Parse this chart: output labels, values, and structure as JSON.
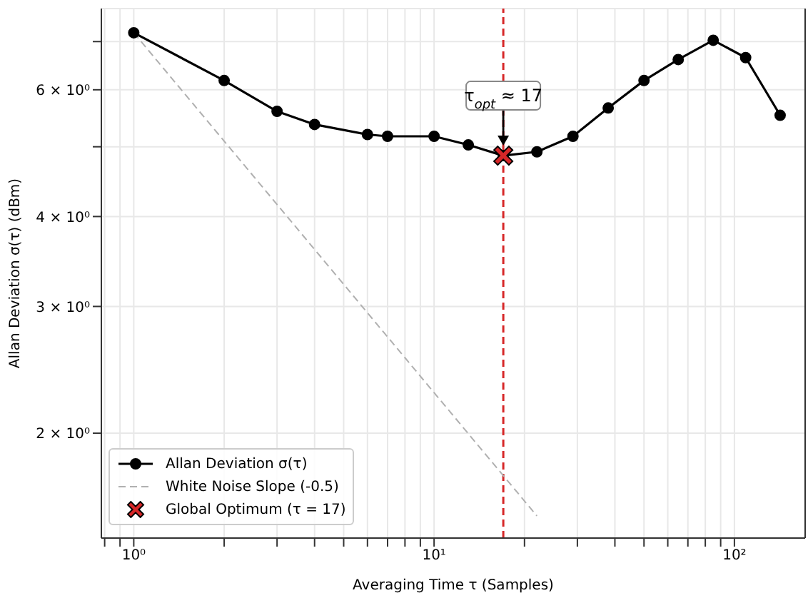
{
  "chart_data": {
    "type": "line",
    "xlabel": "Averaging Time τ (Samples)",
    "ylabel": "Allan Deviation σ(τ) (dBm)",
    "log": "xy",
    "grid": true,
    "legend": "bottom left",
    "xlim": [
      0.78,
      172
    ],
    "ylim": [
      1.43,
      7.78
    ],
    "xticks": [
      {
        "value": 0.8,
        "label": null
      },
      {
        "value": 0.9,
        "label": null
      },
      {
        "value": 1,
        "label": "10⁰"
      },
      {
        "value": 2,
        "label": null
      },
      {
        "value": 3,
        "label": null
      },
      {
        "value": 4,
        "label": null
      },
      {
        "value": 5,
        "label": null
      },
      {
        "value": 6,
        "label": null
      },
      {
        "value": 7,
        "label": null
      },
      {
        "value": 8,
        "label": null
      },
      {
        "value": 9,
        "label": null
      },
      {
        "value": 10,
        "label": "10¹"
      },
      {
        "value": 20,
        "label": null
      },
      {
        "value": 30,
        "label": null
      },
      {
        "value": 40,
        "label": null
      },
      {
        "value": 50,
        "label": null
      },
      {
        "value": 60,
        "label": null
      },
      {
        "value": 70,
        "label": null
      },
      {
        "value": 80,
        "label": null
      },
      {
        "value": 90,
        "label": null
      },
      {
        "value": 100,
        "label": "10²"
      }
    ],
    "yticks": [
      {
        "value": 2,
        "label": "2 × 10⁰"
      },
      {
        "value": 3,
        "label": "3 × 10⁰"
      },
      {
        "value": 4,
        "label": "4 × 10⁰"
      },
      {
        "value": 5,
        "label": null
      },
      {
        "value": 6,
        "label": "6 × 10⁰"
      },
      {
        "value": 7,
        "label": null
      }
    ],
    "series": [
      {
        "name": "Allan Deviation σ(τ)",
        "color": "#000000",
        "marker": "circle",
        "line_style": "solid",
        "x": [
          1,
          2,
          3,
          4,
          6,
          7,
          10,
          13,
          17,
          22,
          29,
          38,
          50,
          65,
          85,
          109,
          142
        ],
        "values": [
          7.2,
          6.18,
          5.6,
          5.37,
          5.2,
          5.17,
          5.17,
          5.03,
          4.86,
          4.92,
          5.17,
          5.66,
          6.18,
          6.61,
          7.03,
          6.65,
          5.53
        ]
      },
      {
        "name": "White Noise Slope (-0.5)",
        "color": "#b0b0b0",
        "marker": "none",
        "line_style": "dashed",
        "x": [
          1,
          22
        ],
        "values": [
          7.2,
          1.535
        ]
      },
      {
        "name": "Global Optimum (τ = 17)",
        "type": "scatter",
        "color": "#d62728",
        "marker": "cross",
        "x": [
          17
        ],
        "values": [
          4.86
        ]
      }
    ],
    "ref_lines": [
      {
        "axis": "x",
        "value": 17,
        "color": "#d62728",
        "line_style": "dashed"
      }
    ],
    "annotations": [
      {
        "text": "τ$_{opt}$ ≈ 17",
        "x": 17,
        "y": 4.86
      }
    ]
  }
}
